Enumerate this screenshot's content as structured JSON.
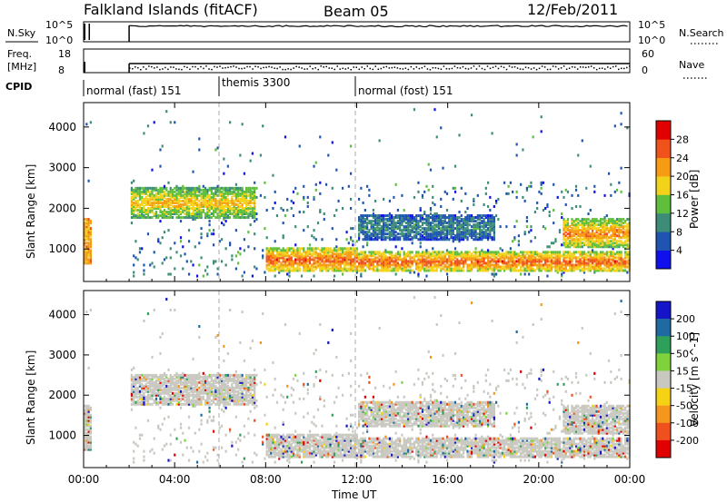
{
  "header": {
    "station": "Falkland Islands (fitACF)",
    "beam": "Beam 05",
    "date": "12/Feb/2011"
  },
  "strip_nsky": {
    "label": "N.Sky",
    "left_ticks": [
      "10^5",
      "10^0"
    ],
    "right_ticks": [
      "10^5",
      "10^0"
    ],
    "right_label": "N.Search"
  },
  "strip_freq": {
    "label_line1": "Freq.",
    "label_line2": "[MHz]",
    "left_ticks": [
      "18",
      "8"
    ],
    "right_ticks": [
      "60",
      "0"
    ],
    "right_label": "Nave"
  },
  "cpid": {
    "label": "CPID",
    "segments": [
      {
        "start_hour": 0.0,
        "text": "normal (fast) 151"
      },
      {
        "start_hour": 6.0,
        "text": "themis 3300"
      },
      {
        "start_hour": 12.0,
        "text": "normal (fost) 151"
      }
    ]
  },
  "time_axis": {
    "tick_labels": [
      "00:00",
      "04:00",
      "08:00",
      "12:00",
      "16:00",
      "20:00",
      "00:00"
    ],
    "label": "Time UT"
  },
  "power_panel": {
    "ylabel": "Slant Range [km]",
    "ytick_labels": [
      "1000",
      "2000",
      "3000",
      "4000"
    ],
    "colorbar_label": "Power [dB]",
    "colorbar_ticks": [
      "4",
      "8",
      "12",
      "16",
      "20",
      "24",
      "28"
    ],
    "colors": [
      "#1010ee",
      "#1f55b0",
      "#3c8c78",
      "#5fbf3c",
      "#f2d21a",
      "#f59c12",
      "#f0521c",
      "#e00000"
    ]
  },
  "velocity_panel": {
    "ylabel": "Slant Range [km]",
    "ytick_labels": [
      "1000",
      "2000",
      "3000",
      "4000"
    ],
    "colorbar_label": "Velocity [m s^-1]",
    "colorbar_ticks": [
      "200",
      "100",
      "50",
      "15",
      "-15",
      "-50",
      "-100",
      "-200"
    ],
    "colors": [
      "#1414c8",
      "#1f6aa0",
      "#2ea05a",
      "#7fd23c",
      "#c8c8c0",
      "#f5d214",
      "#f5961e",
      "#f0501e",
      "#e00000"
    ]
  },
  "chart_data": {
    "type": "heatmap",
    "x_range_hours": [
      0,
      24
    ],
    "y_range_km": [
      200,
      4600
    ],
    "cpid_boundaries_hours": [
      6.0,
      12.0
    ],
    "data_gaps_hours": [
      [
        0.3,
        2.0
      ]
    ],
    "power_echo_bands": [
      {
        "start_hour": 2.0,
        "end_hour": 7.5,
        "range_km": [
          1700,
          2500
        ],
        "power_db": 20
      },
      {
        "start_hour": 12.0,
        "end_hour": 24.0,
        "range_km": [
          400,
          900
        ],
        "power_db": 26
      },
      {
        "start_hour": 12.0,
        "end_hour": 18.0,
        "range_km": [
          1200,
          1800
        ],
        "power_db": 10
      },
      {
        "start_hour": 21.0,
        "end_hour": 24.0,
        "range_km": [
          1000,
          1700
        ],
        "power_db": 24
      },
      {
        "start_hour": 8.0,
        "end_hour": 12.0,
        "range_km": [
          400,
          1000
        ],
        "power_db": 26
      }
    ]
  }
}
